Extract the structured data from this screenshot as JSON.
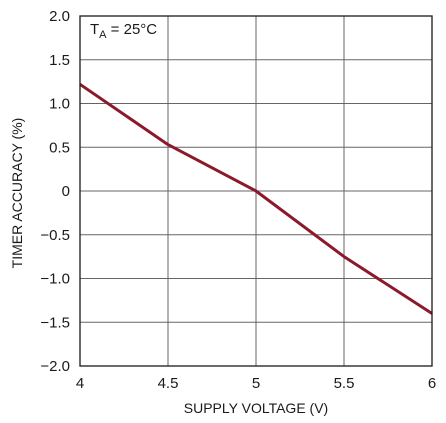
{
  "chart_data": {
    "type": "line",
    "xlabel": "SUPPLY VOLTAGE (V)",
    "ylabel": "TIMER ACCURACY (%)",
    "xlim": [
      4,
      6
    ],
    "ylim": [
      -2.0,
      2.0
    ],
    "x_ticks": [
      4,
      4.5,
      5,
      5.5,
      6
    ],
    "x_tick_labels": [
      "4",
      "4.5",
      "5",
      "5.5",
      "6"
    ],
    "y_ticks": [
      2.0,
      1.5,
      1.0,
      0.5,
      0,
      -0.5,
      -1.0,
      -1.5,
      -2.0
    ],
    "y_tick_labels": [
      "2.0",
      "1.5",
      "1.0",
      "0.5",
      "0",
      "−0.5",
      "−1.0",
      "−1.5",
      "−2.0"
    ],
    "grid": true,
    "annotation": {
      "main": "T",
      "sub": "A",
      "rest": " = 25°C"
    },
    "series": [
      {
        "color": "#8b1a2b",
        "x": [
          4.0,
          4.5,
          5.0,
          5.5,
          6.0
        ],
        "y": [
          1.22,
          0.53,
          0.0,
          -0.75,
          -1.4
        ]
      }
    ]
  }
}
